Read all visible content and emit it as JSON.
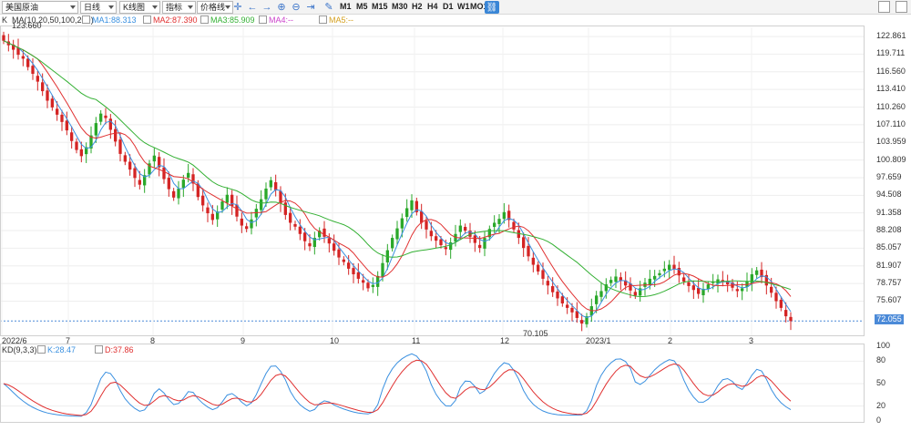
{
  "toolbar": {
    "symbol": "美国原油",
    "period_select": "日线",
    "chart_type": "K线图",
    "indicator": "指标",
    "price_line": "价格线",
    "periods": [
      "M1",
      "M5",
      "M15",
      "M30",
      "H2",
      "H4",
      "D1",
      "W1",
      "MO1"
    ]
  },
  "legend": {
    "main_label": "K",
    "ma_label": "MA(10,20,50,100,200)",
    "ma1": "MA1:88.313",
    "ma2": "MA2:87.390",
    "ma3": "MA3:85.909",
    "ma4": "MA4:--",
    "ma5": "MA5:--",
    "high_marker": "123.660",
    "low_marker": "70.105",
    "kd_label": "KD(9,3,3)",
    "k_value": "K:28.47",
    "d_value": "D:37.86"
  },
  "colors": {
    "up": "#2aa82a",
    "down": "#d42424",
    "ma1": "#3a90e0",
    "ma2": "#e03030",
    "ma3": "#33b033",
    "k": "#3a90e0",
    "d": "#e03030",
    "accent": "#4b8ad8"
  },
  "price_axis": {
    "ticks": [
      "122.861",
      "119.711",
      "116.560",
      "113.410",
      "110.260",
      "107.110",
      "103.959",
      "100.809",
      "97.659",
      "94.508",
      "91.358",
      "88.208",
      "85.057",
      "81.907",
      "78.757",
      "75.607"
    ],
    "current": "72.055"
  },
  "time_axis": [
    "2022/6",
    "7",
    "8",
    "9",
    "10",
    "11",
    "12",
    "2023/1",
    "2",
    "3"
  ],
  "kd_axis": [
    "100",
    "80",
    "50",
    "20",
    "0"
  ],
  "chart_data": {
    "type": "candlestick",
    "instrument": "美国原油",
    "period": "D1",
    "price_range": [
      71,
      124
    ],
    "high": 123.66,
    "low": 70.105,
    "last": 72.055,
    "indicators": {
      "MA1": 88.313,
      "MA2": 87.39,
      "MA3": 85.909,
      "K": 28.47,
      "D": 37.86
    },
    "close": [
      122.1,
      121.3,
      120.5,
      119.6,
      118.9,
      117.4,
      116.2,
      114.8,
      113.1,
      111.4,
      110.2,
      108.9,
      107.6,
      106.1,
      104.2,
      102.6,
      101.5,
      103.1,
      105.2,
      107.4,
      109.1,
      108.3,
      106.2,
      104.1,
      101.9,
      100.5,
      99.1,
      97.6,
      96.4,
      98.1,
      100.2,
      101.6,
      99.5,
      97.4,
      95.6,
      94.1,
      95.7,
      97.3,
      98.5,
      96.6,
      94.2,
      92.7,
      91.3,
      90.1,
      91.6,
      93.4,
      94.6,
      92.6,
      90.7,
      89.1,
      88.5,
      90.2,
      92.1,
      93.8,
      95.7,
      97.2,
      95.4,
      93.1,
      91.0,
      89.6,
      88.9,
      87.6,
      86.3,
      85.4,
      86.9,
      88.2,
      87.1,
      85.9,
      84.6,
      83.4,
      82.6,
      81.4,
      80.4,
      79.6,
      78.9,
      77.9,
      78.5,
      80.1,
      82.4,
      84.7,
      86.9,
      88.6,
      90.4,
      92.2,
      93.6,
      91.5,
      89.6,
      88.4,
      87.2,
      86.4,
      85.6,
      84.9,
      86.1,
      87.6,
      89.1,
      88.2,
      87.1,
      86.0,
      85.1,
      86.9,
      88.5,
      89.6,
      90.3,
      91.5,
      90.1,
      88.4,
      86.9,
      85.1,
      83.6,
      82.1,
      80.9,
      79.6,
      78.4,
      77.2,
      76.1,
      75.2,
      74.4,
      73.6,
      72.6,
      71.6,
      72.9,
      74.7,
      76.6,
      77.4,
      78.6,
      79.4,
      80.0,
      79.2,
      78.4,
      77.5,
      76.6,
      77.9,
      78.9,
      79.6,
      80.1,
      80.6,
      81.4,
      82.1,
      81.3,
      80.2,
      79.1,
      78.3,
      77.6,
      76.9,
      77.8,
      78.6,
      79.1,
      79.5,
      79.1,
      78.6,
      78.0,
      77.4,
      77.9,
      79.1,
      80.4,
      81.1,
      79.9,
      78.4,
      77.1,
      75.6,
      74.4,
      72.9,
      72.055
    ]
  }
}
